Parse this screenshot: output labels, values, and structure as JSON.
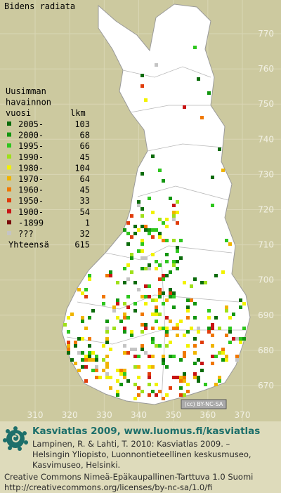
{
  "map": {
    "title": "Bidens radiata",
    "yticks": [
      770,
      760,
      750,
      740,
      730,
      720,
      710,
      700,
      690,
      680,
      670
    ],
    "xticks": [
      310,
      320,
      330,
      340,
      350,
      360,
      370
    ],
    "license_badge": "(cc) BY-NC-SA"
  },
  "legend": {
    "heading": [
      "Uusimman",
      "havainnon",
      "vuosi"
    ],
    "count_heading": "lkm",
    "items": [
      {
        "label": "2005-",
        "count": 103,
        "color": "#0b6b0b"
      },
      {
        "label": "2000-",
        "count": 68,
        "color": "#12960f"
      },
      {
        "label": "1995-",
        "count": 66,
        "color": "#2ec61e"
      },
      {
        "label": "1990-",
        "count": 45,
        "color": "#9fe01a"
      },
      {
        "label": "1980-",
        "count": 104,
        "color": "#f2f200"
      },
      {
        "label": "1970-",
        "count": 64,
        "color": "#f0b400"
      },
      {
        "label": "1960-",
        "count": 45,
        "color": "#f07800"
      },
      {
        "label": "1950-",
        "count": 33,
        "color": "#e03c0a"
      },
      {
        "label": "1900-",
        "count": 54,
        "color": "#c81414"
      },
      {
        "label": "-1899",
        "count": 1,
        "color": "#7a0a0a"
      },
      {
        "label": "???",
        "count": 32,
        "color": "#c4c4c4"
      }
    ],
    "total_label": "Yhteensä",
    "total": 615
  },
  "footer": {
    "brand": "Kasviatlas 2009, www.luomus.fi/kasviatlas",
    "citation": [
      "Lampinen, R. & Lahti, T. 2010: Kasviatlas 2009. –",
      "Helsingin Yliopisto, Luonnontieteellinen keskusmuseo,",
      "Kasvimuseo, Helsinki."
    ],
    "license": [
      "Creative Commons Nimeä-Epäkaupallinen-Tarttuva 1.0 Suomi",
      "http://creativecommons.org/licenses/by-nc-sa/1.0/fi"
    ]
  }
}
